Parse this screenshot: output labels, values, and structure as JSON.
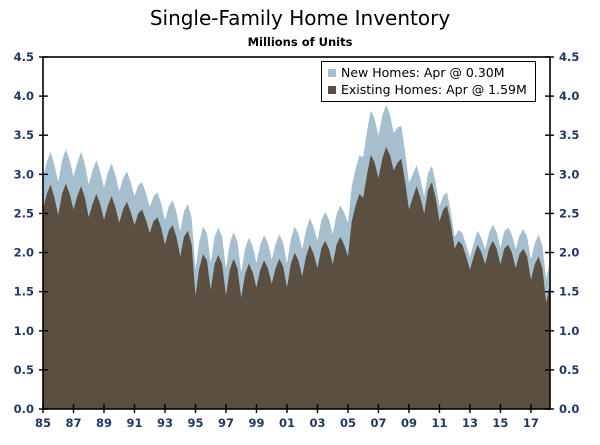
{
  "header": {
    "title": "Single-Family Home Inventory",
    "subtitle": "Millions of Units"
  },
  "chart_data": {
    "type": "area",
    "stacked": true,
    "title": "Single-Family Home Inventory",
    "subtitle": "Millions of Units",
    "x_start_year": 1985,
    "x_step_years": 0.25,
    "x_end_year": 2018.25,
    "ylim": [
      0,
      4.5
    ],
    "y_ticks": [
      "0.0",
      "0.5",
      "1.0",
      "1.5",
      "2.0",
      "2.5",
      "3.0",
      "3.5",
      "4.0",
      "4.5"
    ],
    "x_tick_labels": [
      "85",
      "87",
      "89",
      "91",
      "93",
      "95",
      "97",
      "99",
      "01",
      "03",
      "05",
      "07",
      "09",
      "11",
      "13",
      "15",
      "17"
    ],
    "x_tick_years": [
      1985,
      1987,
      1989,
      1991,
      1993,
      1995,
      1997,
      1999,
      2001,
      2003,
      2005,
      2007,
      2009,
      2011,
      2013,
      2015,
      2017
    ],
    "legend_position": "top-right",
    "grid": false,
    "legend": [
      {
        "label": "New Homes: Apr @ 0.30M",
        "color": "#a5bfce"
      },
      {
        "label": "Existing Homes: Apr @ 1.59M",
        "color": "#5a4f40"
      }
    ],
    "colors": {
      "new_homes_fill": "#a5bfce",
      "existing_homes_fill": "#5a4f40",
      "axis": "#000000",
      "tick_label": "#203864",
      "background": "#ffffff"
    },
    "series": [
      {
        "name": "New Homes",
        "latest_label": "Apr @ 0.30M",
        "values": [
          0.4,
          0.41,
          0.42,
          0.42,
          0.42,
          0.43,
          0.44,
          0.43,
          0.42,
          0.43,
          0.44,
          0.43,
          0.42,
          0.43,
          0.43,
          0.42,
          0.41,
          0.42,
          0.42,
          0.41,
          0.4,
          0.4,
          0.39,
          0.38,
          0.37,
          0.36,
          0.35,
          0.34,
          0.33,
          0.32,
          0.32,
          0.31,
          0.31,
          0.31,
          0.32,
          0.32,
          0.32,
          0.33,
          0.34,
          0.34,
          0.34,
          0.34,
          0.35,
          0.35,
          0.35,
          0.35,
          0.35,
          0.35,
          0.34,
          0.34,
          0.34,
          0.34,
          0.33,
          0.33,
          0.33,
          0.33,
          0.32,
          0.32,
          0.32,
          0.32,
          0.31,
          0.31,
          0.31,
          0.31,
          0.31,
          0.32,
          0.33,
          0.34,
          0.34,
          0.34,
          0.34,
          0.34,
          0.35,
          0.36,
          0.37,
          0.38,
          0.38,
          0.39,
          0.4,
          0.41,
          0.43,
          0.45,
          0.47,
          0.49,
          0.52,
          0.55,
          0.57,
          0.56,
          0.54,
          0.55,
          0.54,
          0.52,
          0.48,
          0.45,
          0.42,
          0.38,
          0.34,
          0.3,
          0.27,
          0.24,
          0.22,
          0.21,
          0.21,
          0.2,
          0.19,
          0.18,
          0.17,
          0.16,
          0.15,
          0.14,
          0.15,
          0.15,
          0.16,
          0.17,
          0.18,
          0.19,
          0.19,
          0.2,
          0.21,
          0.21,
          0.21,
          0.22,
          0.22,
          0.23,
          0.24,
          0.24,
          0.25,
          0.25,
          0.26,
          0.27,
          0.28,
          0.29,
          0.3,
          0.3
        ]
      },
      {
        "name": "Existing Homes",
        "latest_label": "Apr @ 1.59M",
        "values": [
          2.55,
          2.75,
          2.87,
          2.7,
          2.48,
          2.75,
          2.88,
          2.75,
          2.55,
          2.72,
          2.85,
          2.7,
          2.45,
          2.62,
          2.75,
          2.62,
          2.42,
          2.6,
          2.72,
          2.58,
          2.38,
          2.55,
          2.65,
          2.52,
          2.35,
          2.5,
          2.55,
          2.42,
          2.25,
          2.4,
          2.45,
          2.32,
          2.1,
          2.28,
          2.35,
          2.2,
          1.95,
          2.2,
          2.28,
          2.1,
          1.45,
          1.8,
          1.98,
          1.9,
          1.52,
          1.85,
          1.97,
          1.85,
          1.45,
          1.78,
          1.92,
          1.8,
          1.42,
          1.72,
          1.86,
          1.75,
          1.55,
          1.78,
          1.9,
          1.8,
          1.6,
          1.8,
          1.92,
          1.82,
          1.55,
          1.85,
          2.0,
          1.9,
          1.7,
          1.95,
          2.1,
          1.98,
          1.8,
          2.05,
          2.15,
          2.05,
          1.85,
          2.1,
          2.2,
          2.1,
          1.95,
          2.4,
          2.6,
          2.75,
          2.7,
          3.0,
          3.25,
          3.15,
          2.95,
          3.2,
          3.35,
          3.25,
          3.05,
          3.15,
          3.2,
          2.9,
          2.55,
          2.7,
          2.85,
          2.7,
          2.5,
          2.8,
          2.9,
          2.7,
          2.4,
          2.55,
          2.6,
          2.35,
          2.05,
          2.15,
          2.1,
          1.95,
          1.78,
          1.95,
          2.1,
          2.0,
          1.85,
          2.05,
          2.15,
          2.05,
          1.85,
          2.05,
          2.1,
          2.0,
          1.8,
          1.98,
          2.05,
          1.95,
          1.65,
          1.85,
          1.95,
          1.8,
          1.36,
          1.59
        ]
      }
    ]
  }
}
